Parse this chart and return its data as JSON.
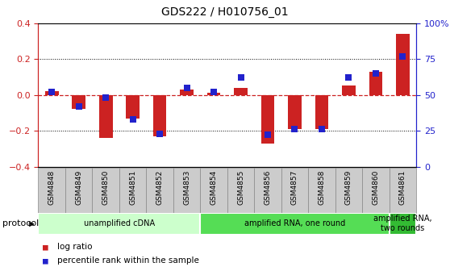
{
  "title": "GDS222 / H010756_01",
  "samples": [
    "GSM4848",
    "GSM4849",
    "GSM4850",
    "GSM4851",
    "GSM4852",
    "GSM4853",
    "GSM4854",
    "GSM4855",
    "GSM4856",
    "GSM4857",
    "GSM4858",
    "GSM4859",
    "GSM4860",
    "GSM4861"
  ],
  "log_ratio": [
    0.02,
    -0.08,
    -0.24,
    -0.13,
    -0.23,
    0.03,
    0.01,
    0.04,
    -0.27,
    -0.19,
    -0.19,
    0.05,
    0.13,
    0.34
  ],
  "percentile": [
    52,
    42,
    48,
    33,
    23,
    55,
    52,
    62,
    22,
    26,
    26,
    62,
    65,
    77
  ],
  "protocols": [
    {
      "label": "unamplified cDNA",
      "start": 0,
      "end": 6,
      "color": "#ccffcc"
    },
    {
      "label": "amplified RNA, one round",
      "start": 6,
      "end": 13,
      "color": "#55dd55"
    },
    {
      "label": "amplified RNA,\ntwo rounds",
      "start": 13,
      "end": 14,
      "color": "#33bb33"
    }
  ],
  "bar_color": "#cc2222",
  "dot_color": "#2222cc",
  "ylim": [
    -0.4,
    0.4
  ],
  "yticks_left": [
    -0.4,
    -0.2,
    0.0,
    0.2,
    0.4
  ],
  "yticks_right_vals": [
    0,
    25,
    50,
    75,
    100
  ],
  "yticks_right_labels": [
    "0",
    "25",
    "50",
    "75",
    "100%"
  ],
  "zero_line_color": "#cc2222",
  "bg_color": "#ffffff",
  "sample_bg": "#cccccc",
  "bar_width": 0.5,
  "dot_marker_size": 28
}
